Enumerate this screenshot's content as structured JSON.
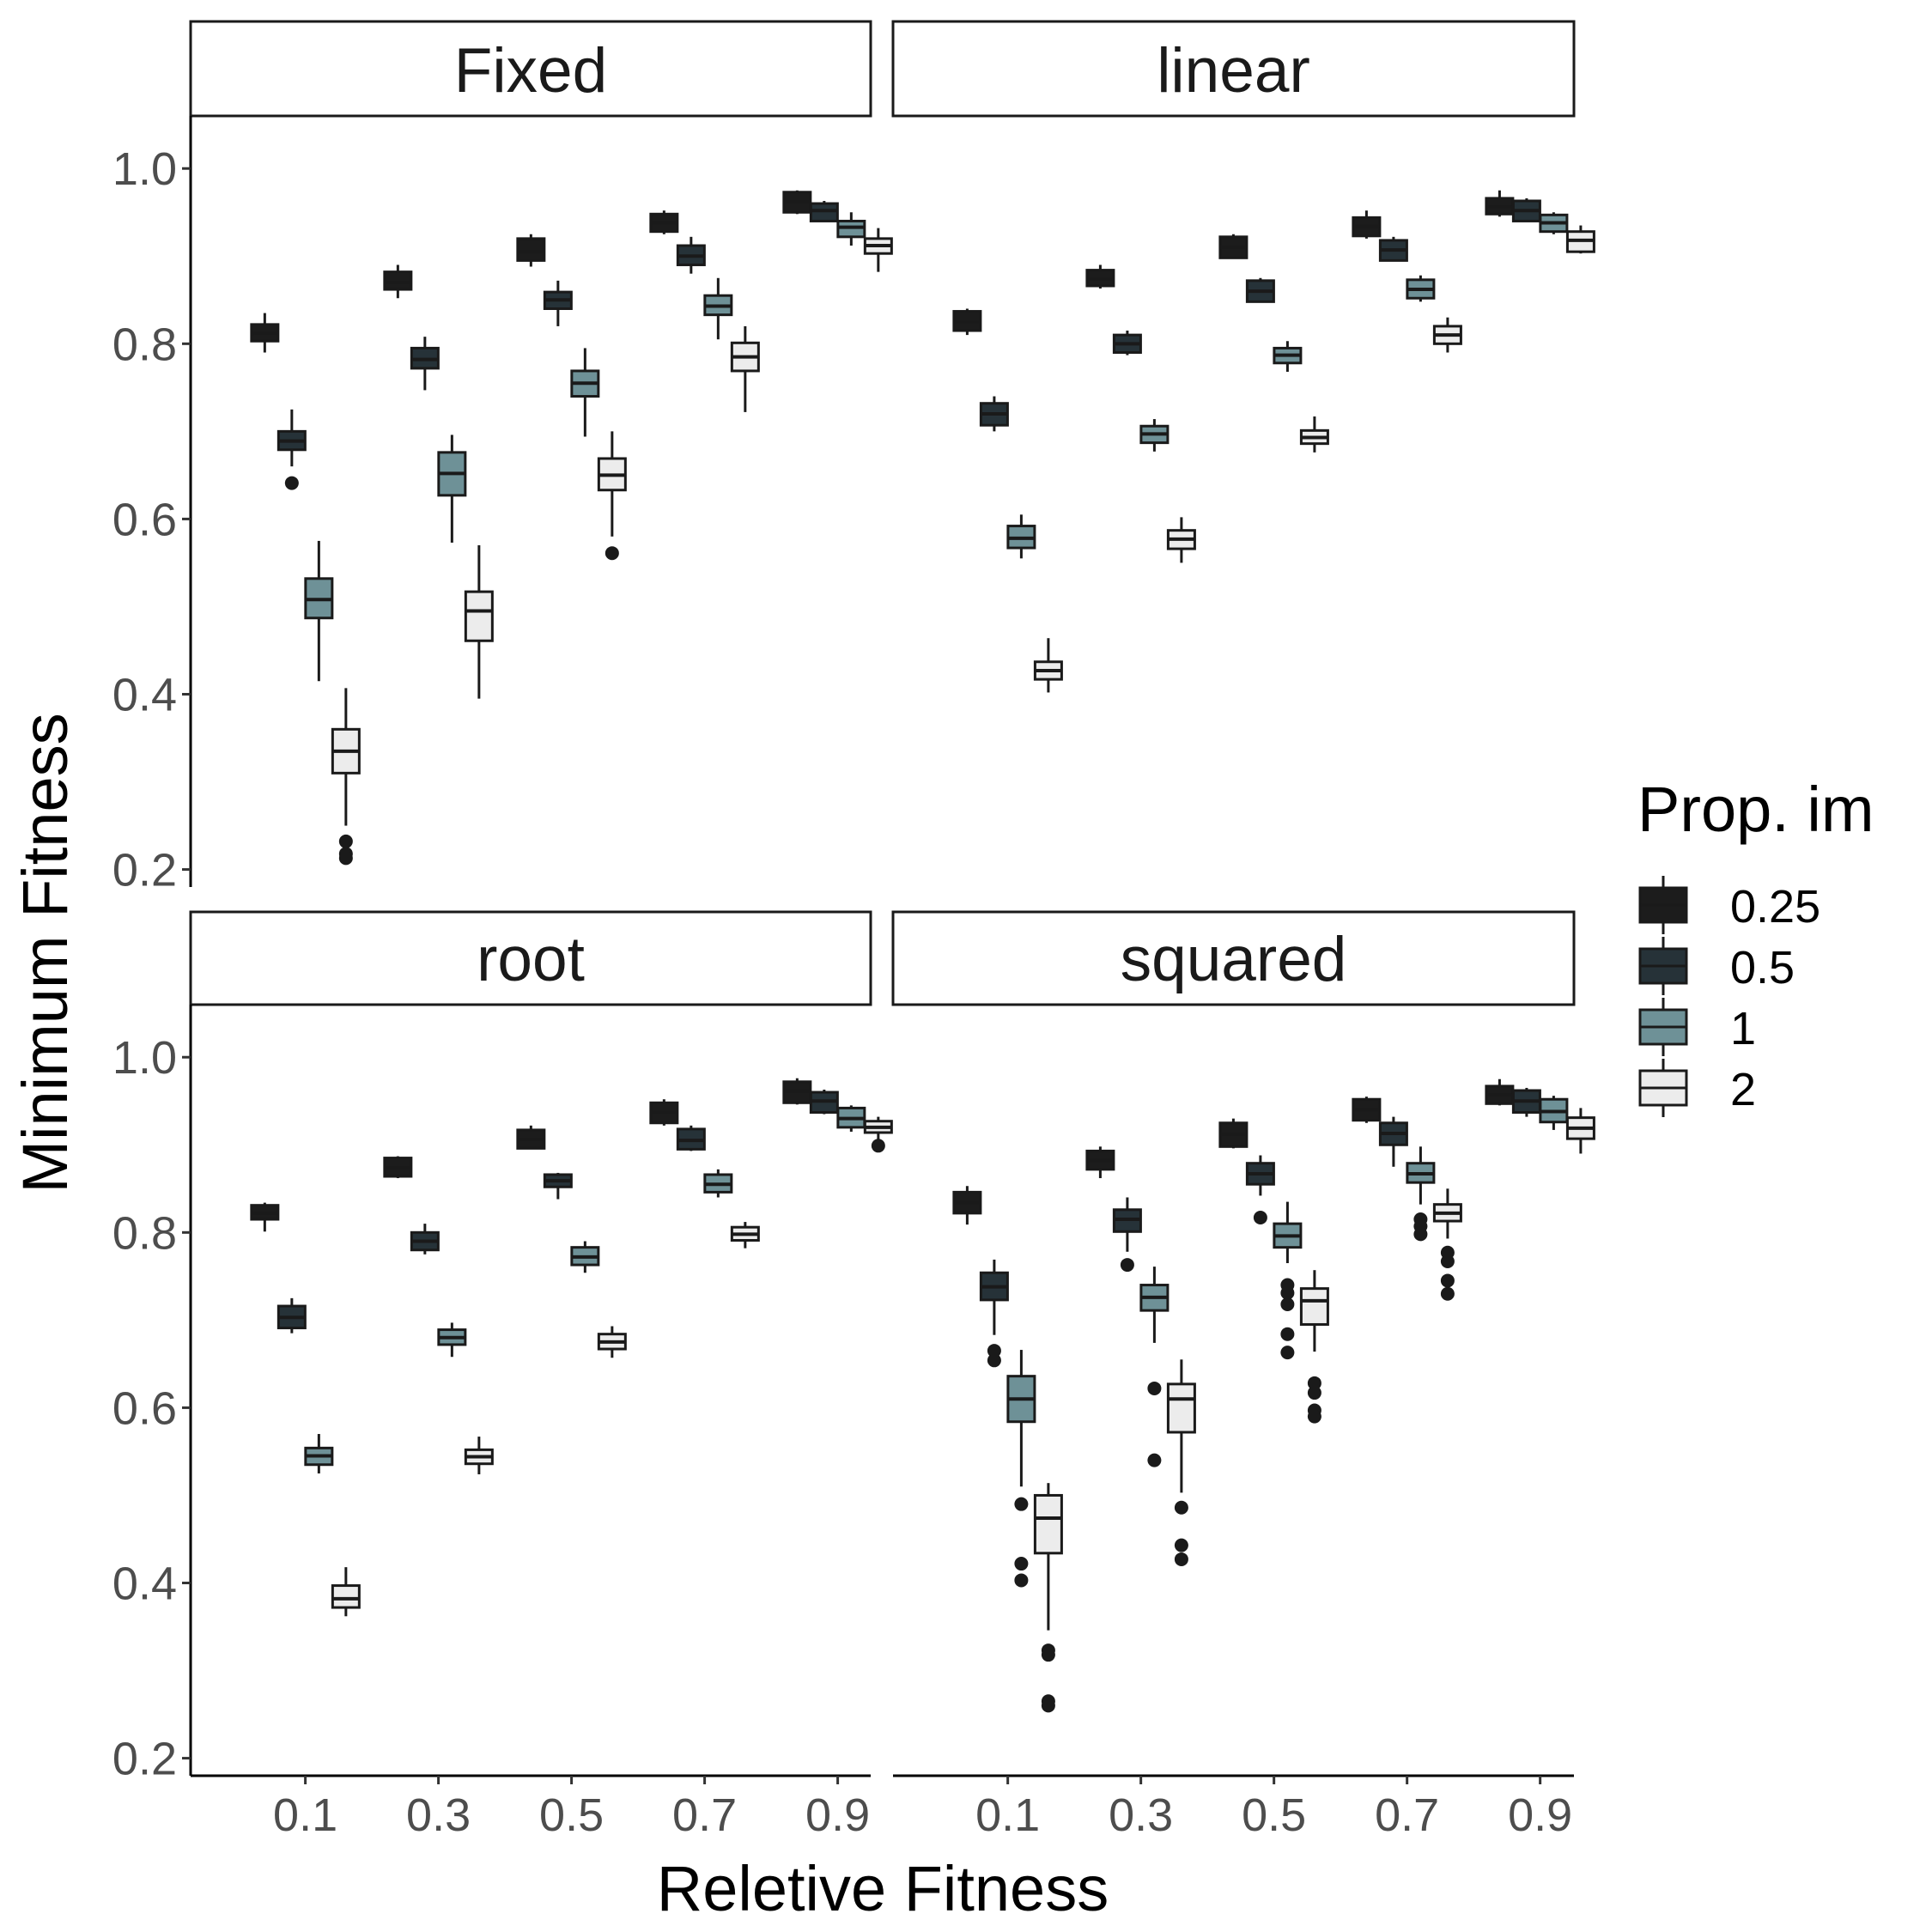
{
  "chart_data": {
    "type": "box",
    "xlabel": "Reletive Fitness",
    "ylabel": "Minimum Fitness",
    "x_categories": [
      "0.1",
      "0.3",
      "0.5",
      "0.7",
      "0.9"
    ],
    "y_ticks": [
      "0.2",
      "0.4",
      "0.6",
      "0.8",
      "1.0"
    ],
    "ylim": [
      0.18,
      1.06
    ],
    "legend": {
      "title": "Prop. im",
      "position": "right",
      "entries": [
        {
          "label": "0.25",
          "color": "#1c1c1c"
        },
        {
          "label": "0.5",
          "color": "#263238"
        },
        {
          "label": "1",
          "color": "#6e9197"
        },
        {
          "label": "2",
          "color": "#ececec"
        }
      ]
    },
    "panels": [
      {
        "name": "Fixed",
        "groups": [
          [
            {
              "min": 0.79,
              "q1": 0.803,
              "median": 0.812,
              "q3": 0.822,
              "max": 0.835,
              "outliers": []
            },
            {
              "min": 0.66,
              "q1": 0.679,
              "median": 0.689,
              "q3": 0.7,
              "max": 0.725,
              "outliers": [
                0.641
              ]
            },
            {
              "min": 0.415,
              "q1": 0.487,
              "median": 0.508,
              "q3": 0.532,
              "max": 0.575,
              "outliers": []
            },
            {
              "min": 0.25,
              "q1": 0.31,
              "median": 0.335,
              "q3": 0.36,
              "max": 0.407,
              "outliers": [
                0.232,
                0.218,
                0.213
              ]
            }
          ],
          [
            {
              "min": 0.852,
              "q1": 0.862,
              "median": 0.87,
              "q3": 0.882,
              "max": 0.89,
              "outliers": []
            },
            {
              "min": 0.747,
              "q1": 0.772,
              "median": 0.782,
              "q3": 0.795,
              "max": 0.808,
              "outliers": []
            },
            {
              "min": 0.573,
              "q1": 0.627,
              "median": 0.652,
              "q3": 0.676,
              "max": 0.696,
              "outliers": []
            },
            {
              "min": 0.395,
              "q1": 0.461,
              "median": 0.495,
              "q3": 0.517,
              "max": 0.57,
              "outliers": []
            }
          ],
          [
            {
              "min": 0.888,
              "q1": 0.895,
              "median": 0.905,
              "q3": 0.92,
              "max": 0.925,
              "outliers": []
            },
            {
              "min": 0.82,
              "q1": 0.84,
              "median": 0.85,
              "q3": 0.859,
              "max": 0.872,
              "outliers": []
            },
            {
              "min": 0.694,
              "q1": 0.74,
              "median": 0.755,
              "q3": 0.769,
              "max": 0.795,
              "outliers": []
            },
            {
              "min": 0.58,
              "q1": 0.633,
              "median": 0.65,
              "q3": 0.669,
              "max": 0.7,
              "outliers": [
                0.561
              ]
            }
          ],
          [
            {
              "min": 0.925,
              "q1": 0.928,
              "median": 0.938,
              "q3": 0.948,
              "max": 0.952,
              "outliers": []
            },
            {
              "min": 0.88,
              "q1": 0.89,
              "median": 0.9,
              "q3": 0.912,
              "max": 0.922,
              "outliers": []
            },
            {
              "min": 0.805,
              "q1": 0.833,
              "median": 0.843,
              "q3": 0.855,
              "max": 0.875,
              "outliers": []
            },
            {
              "min": 0.722,
              "q1": 0.769,
              "median": 0.785,
              "q3": 0.801,
              "max": 0.82,
              "outliers": []
            }
          ],
          [
            {
              "min": 0.948,
              "q1": 0.95,
              "median": 0.962,
              "q3": 0.973,
              "max": 0.975,
              "outliers": []
            },
            {
              "min": 0.94,
              "q1": 0.94,
              "median": 0.952,
              "q3": 0.96,
              "max": 0.963,
              "outliers": []
            },
            {
              "min": 0.912,
              "q1": 0.922,
              "median": 0.933,
              "q3": 0.94,
              "max": 0.95,
              "outliers": []
            },
            {
              "min": 0.882,
              "q1": 0.903,
              "median": 0.912,
              "q3": 0.92,
              "max": 0.932,
              "outliers": []
            }
          ]
        ]
      },
      {
        "name": "linear",
        "groups": [
          [
            {
              "min": 0.81,
              "q1": 0.815,
              "median": 0.825,
              "q3": 0.837,
              "max": 0.84,
              "outliers": []
            },
            {
              "min": 0.7,
              "q1": 0.707,
              "median": 0.72,
              "q3": 0.732,
              "max": 0.74,
              "outliers": []
            },
            {
              "min": 0.555,
              "q1": 0.567,
              "median": 0.578,
              "q3": 0.592,
              "max": 0.605,
              "outliers": []
            },
            {
              "min": 0.402,
              "q1": 0.417,
              "median": 0.427,
              "q3": 0.437,
              "max": 0.464,
              "outliers": []
            }
          ],
          [
            {
              "min": 0.863,
              "q1": 0.866,
              "median": 0.874,
              "q3": 0.884,
              "max": 0.89,
              "outliers": []
            },
            {
              "min": 0.787,
              "q1": 0.79,
              "median": 0.8,
              "q3": 0.81,
              "max": 0.815,
              "outliers": []
            },
            {
              "min": 0.677,
              "q1": 0.687,
              "median": 0.697,
              "q3": 0.706,
              "max": 0.714,
              "outliers": []
            },
            {
              "min": 0.55,
              "q1": 0.566,
              "median": 0.577,
              "q3": 0.587,
              "max": 0.602,
              "outliers": []
            }
          ],
          [
            {
              "min": 0.898,
              "q1": 0.898,
              "median": 0.91,
              "q3": 0.922,
              "max": 0.925,
              "outliers": []
            },
            {
              "min": 0.848,
              "q1": 0.848,
              "median": 0.86,
              "q3": 0.872,
              "max": 0.875,
              "outliers": []
            },
            {
              "min": 0.768,
              "q1": 0.778,
              "median": 0.787,
              "q3": 0.795,
              "max": 0.803,
              "outliers": []
            },
            {
              "min": 0.676,
              "q1": 0.686,
              "median": 0.693,
              "q3": 0.701,
              "max": 0.717,
              "outliers": []
            }
          ],
          [
            {
              "min": 0.92,
              "q1": 0.923,
              "median": 0.934,
              "q3": 0.944,
              "max": 0.952,
              "outliers": []
            },
            {
              "min": 0.895,
              "q1": 0.895,
              "median": 0.907,
              "q3": 0.918,
              "max": 0.922,
              "outliers": []
            },
            {
              "min": 0.848,
              "q1": 0.852,
              "median": 0.862,
              "q3": 0.873,
              "max": 0.878,
              "outliers": []
            },
            {
              "min": 0.79,
              "q1": 0.8,
              "median": 0.81,
              "q3": 0.82,
              "max": 0.83,
              "outliers": []
            }
          ],
          [
            {
              "min": 0.945,
              "q1": 0.948,
              "median": 0.956,
              "q3": 0.966,
              "max": 0.975,
              "outliers": []
            },
            {
              "min": 0.94,
              "q1": 0.94,
              "median": 0.952,
              "q3": 0.963,
              "max": 0.966,
              "outliers": []
            },
            {
              "min": 0.925,
              "q1": 0.928,
              "median": 0.938,
              "q3": 0.947,
              "max": 0.95,
              "outliers": []
            },
            {
              "min": 0.903,
              "q1": 0.905,
              "median": 0.918,
              "q3": 0.928,
              "max": 0.935,
              "outliers": []
            }
          ]
        ]
      },
      {
        "name": "root",
        "groups": [
          [
            {
              "min": 0.801,
              "q1": 0.815,
              "median": 0.822,
              "q3": 0.831,
              "max": 0.834,
              "outliers": []
            },
            {
              "min": 0.685,
              "q1": 0.691,
              "median": 0.703,
              "q3": 0.716,
              "max": 0.725,
              "outliers": []
            },
            {
              "min": 0.525,
              "q1": 0.535,
              "median": 0.545,
              "q3": 0.554,
              "max": 0.57,
              "outliers": []
            },
            {
              "min": 0.362,
              "q1": 0.372,
              "median": 0.382,
              "q3": 0.397,
              "max": 0.418,
              "outliers": []
            }
          ],
          [
            {
              "min": 0.862,
              "q1": 0.864,
              "median": 0.874,
              "q3": 0.885,
              "max": 0.887,
              "outliers": []
            },
            {
              "min": 0.775,
              "q1": 0.78,
              "median": 0.79,
              "q3": 0.8,
              "max": 0.81,
              "outliers": []
            },
            {
              "min": 0.658,
              "q1": 0.672,
              "median": 0.68,
              "q3": 0.689,
              "max": 0.697,
              "outliers": []
            },
            {
              "min": 0.524,
              "q1": 0.536,
              "median": 0.544,
              "q3": 0.552,
              "max": 0.567,
              "outliers": []
            }
          ],
          [
            {
              "min": 0.895,
              "q1": 0.896,
              "median": 0.906,
              "q3": 0.917,
              "max": 0.922,
              "outliers": []
            },
            {
              "min": 0.838,
              "q1": 0.852,
              "median": 0.859,
              "q3": 0.866,
              "max": 0.868,
              "outliers": []
            },
            {
              "min": 0.754,
              "q1": 0.763,
              "median": 0.772,
              "q3": 0.783,
              "max": 0.79,
              "outliers": []
            },
            {
              "min": 0.657,
              "q1": 0.667,
              "median": 0.675,
              "q3": 0.684,
              "max": 0.693,
              "outliers": []
            }
          ],
          [
            {
              "min": 0.922,
              "q1": 0.925,
              "median": 0.937,
              "q3": 0.948,
              "max": 0.952,
              "outliers": []
            },
            {
              "min": 0.893,
              "q1": 0.895,
              "median": 0.905,
              "q3": 0.918,
              "max": 0.922,
              "outliers": []
            },
            {
              "min": 0.84,
              "q1": 0.846,
              "median": 0.855,
              "q3": 0.866,
              "max": 0.872,
              "outliers": []
            },
            {
              "min": 0.782,
              "q1": 0.791,
              "median": 0.798,
              "q3": 0.806,
              "max": 0.812,
              "outliers": []
            }
          ],
          [
            {
              "min": 0.946,
              "q1": 0.948,
              "median": 0.961,
              "q3": 0.972,
              "max": 0.976,
              "outliers": []
            },
            {
              "min": 0.935,
              "q1": 0.937,
              "median": 0.95,
              "q3": 0.96,
              "max": 0.963,
              "outliers": []
            },
            {
              "min": 0.915,
              "q1": 0.92,
              "median": 0.93,
              "q3": 0.942,
              "max": 0.945,
              "outliers": []
            },
            {
              "min": 0.905,
              "q1": 0.914,
              "median": 0.92,
              "q3": 0.927,
              "max": 0.932,
              "outliers": [
                0.899
              ]
            }
          ]
        ]
      },
      {
        "name": "squared",
        "groups": [
          [
            {
              "min": 0.809,
              "q1": 0.822,
              "median": 0.834,
              "q3": 0.846,
              "max": 0.853,
              "outliers": []
            },
            {
              "min": 0.683,
              "q1": 0.723,
              "median": 0.738,
              "q3": 0.754,
              "max": 0.769,
              "outliers": [
                0.665,
                0.654
              ]
            },
            {
              "min": 0.51,
              "q1": 0.584,
              "median": 0.61,
              "q3": 0.636,
              "max": 0.666,
              "outliers": [
                0.49,
                0.422,
                0.403
              ]
            },
            {
              "min": 0.346,
              "q1": 0.434,
              "median": 0.474,
              "q3": 0.5,
              "max": 0.514,
              "outliers": [
                0.323,
                0.318,
                0.265,
                0.26
              ]
            }
          ],
          [
            {
              "min": 0.862,
              "q1": 0.872,
              "median": 0.882,
              "q3": 0.893,
              "max": 0.898,
              "outliers": []
            },
            {
              "min": 0.778,
              "q1": 0.801,
              "median": 0.815,
              "q3": 0.826,
              "max": 0.84,
              "outliers": [
                0.763
              ]
            },
            {
              "min": 0.674,
              "q1": 0.711,
              "median": 0.726,
              "q3": 0.74,
              "max": 0.761,
              "outliers": [
                0.622,
                0.54
              ]
            },
            {
              "min": 0.503,
              "q1": 0.572,
              "median": 0.61,
              "q3": 0.627,
              "max": 0.655,
              "outliers": [
                0.486,
                0.443,
                0.427
              ]
            }
          ],
          [
            {
              "min": 0.896,
              "q1": 0.898,
              "median": 0.912,
              "q3": 0.925,
              "max": 0.93,
              "outliers": []
            },
            {
              "min": 0.842,
              "q1": 0.855,
              "median": 0.867,
              "q3": 0.879,
              "max": 0.888,
              "outliers": [
                0.817
              ]
            },
            {
              "min": 0.765,
              "q1": 0.783,
              "median": 0.796,
              "q3": 0.81,
              "max": 0.835,
              "outliers": [
                0.74,
                0.731,
                0.718,
                0.684,
                0.663
              ]
            },
            {
              "min": 0.664,
              "q1": 0.695,
              "median": 0.722,
              "q3": 0.736,
              "max": 0.757,
              "outliers": [
                0.628,
                0.617,
                0.597,
                0.59
              ]
            }
          ],
          [
            {
              "min": 0.925,
              "q1": 0.928,
              "median": 0.94,
              "q3": 0.952,
              "max": 0.955,
              "outliers": []
            },
            {
              "min": 0.875,
              "q1": 0.9,
              "median": 0.913,
              "q3": 0.925,
              "max": 0.932,
              "outliers": []
            },
            {
              "min": 0.832,
              "q1": 0.857,
              "median": 0.867,
              "q3": 0.879,
              "max": 0.898,
              "outliers": [
                0.815,
                0.807,
                0.798
              ]
            },
            {
              "min": 0.793,
              "q1": 0.813,
              "median": 0.822,
              "q3": 0.832,
              "max": 0.85,
              "outliers": [
                0.777,
                0.767,
                0.745,
                0.73
              ]
            }
          ],
          [
            {
              "min": 0.945,
              "q1": 0.947,
              "median": 0.957,
              "q3": 0.967,
              "max": 0.975,
              "outliers": []
            },
            {
              "min": 0.932,
              "q1": 0.937,
              "median": 0.95,
              "q3": 0.962,
              "max": 0.965,
              "outliers": []
            },
            {
              "min": 0.917,
              "q1": 0.926,
              "median": 0.938,
              "q3": 0.952,
              "max": 0.956,
              "outliers": []
            },
            {
              "min": 0.89,
              "q1": 0.907,
              "median": 0.919,
              "q3": 0.931,
              "max": 0.942,
              "outliers": []
            }
          ]
        ]
      }
    ]
  }
}
